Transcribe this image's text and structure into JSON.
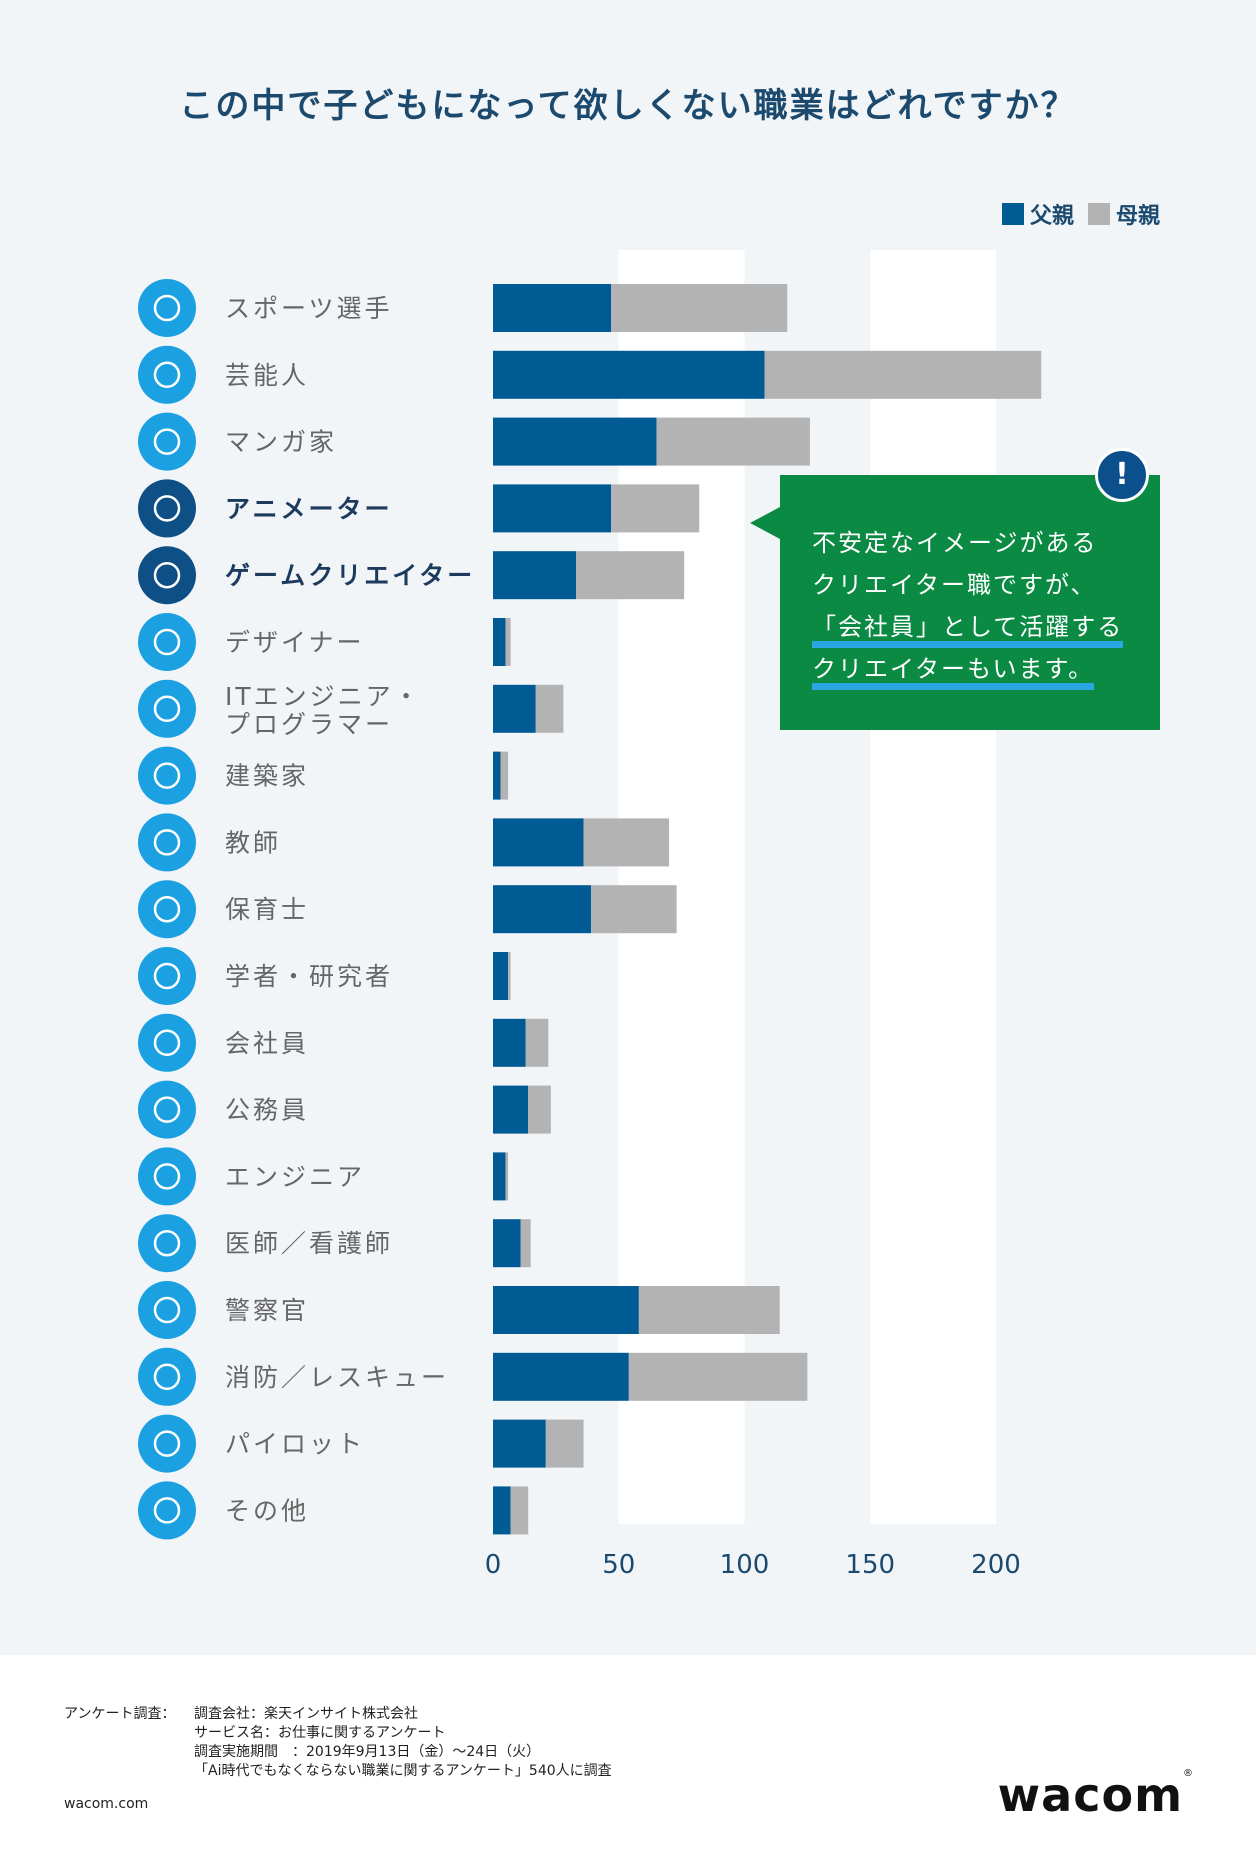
{
  "title": "この中で子どもになって欲しくない職業はどれですか？",
  "legend": {
    "father": "父親",
    "mother": "母親"
  },
  "colors": {
    "father": "#005a94",
    "mother": "#b3b3b3",
    "icon": "#1ba1e2",
    "icon_dark": "#0e4f86",
    "callout": "#0a8a43",
    "panel": "#f2f5f8",
    "title": "#1c4a6e"
  },
  "callout": {
    "badge": "!",
    "line1": "不安定なイメージがある",
    "line2": "クリエイター職ですが、",
    "line3": "「会社員」として活躍する",
    "line4": "クリエイターもいます。"
  },
  "chart_data": {
    "type": "bar",
    "orientation": "horizontal",
    "stacked": true,
    "categories": [
      "スポーツ選手",
      "芸能人",
      "マンガ家",
      "アニメーター",
      "ゲームクリエイター",
      "デザイナー",
      "ITエンジニア・プログラマー",
      "建築家",
      "教師",
      "保育士",
      "学者・研究者",
      "会社員",
      "公務員",
      "エンジニア",
      "医師／看護師",
      "警察官",
      "消防／レスキュー",
      "パイロット",
      "その他"
    ],
    "category_lines": [
      [
        "スポーツ選手"
      ],
      [
        "芸能人"
      ],
      [
        "マンガ家"
      ],
      [
        "アニメーター"
      ],
      [
        "ゲームクリエイター"
      ],
      [
        "デザイナー"
      ],
      [
        "ITエンジニア・",
        "プログラマー"
      ],
      [
        "建築家"
      ],
      [
        "教師"
      ],
      [
        "保育士"
      ],
      [
        "学者・研究者"
      ],
      [
        "会社員"
      ],
      [
        "公務員"
      ],
      [
        "エンジニア"
      ],
      [
        "医師／看護師"
      ],
      [
        "警察官"
      ],
      [
        "消防／レスキュー"
      ],
      [
        "パイロット"
      ],
      [
        "その他"
      ]
    ],
    "highlighted": [
      3,
      4
    ],
    "icons": [
      "sports-icon",
      "microphone-icon",
      "manga-icon",
      "animation-tablet-icon",
      "gamepad-icon",
      "design-tools-icon",
      "computer-monitor-icon",
      "blueprint-icon",
      "notebook-icon",
      "apron-icon",
      "books-flask-icon",
      "briefcase-icon",
      "building-id-icon",
      "gear-icon",
      "stethoscope-icon",
      "police-cap-icon",
      "firefighter-helmet-icon",
      "airplane-icon",
      "more-icon"
    ],
    "series": [
      {
        "name": "父親",
        "values": [
          47,
          108,
          65,
          47,
          33,
          5,
          17,
          3,
          36,
          39,
          6,
          13,
          14,
          5,
          11,
          58,
          54,
          21,
          7
        ]
      },
      {
        "name": "母親",
        "values": [
          70,
          110,
          61,
          35,
          43,
          2,
          11,
          3,
          34,
          34,
          1,
          9,
          9,
          1,
          4,
          56,
          71,
          15,
          7
        ]
      }
    ],
    "xticks": [
      0,
      50,
      100,
      150,
      200
    ],
    "xlim": [
      0,
      200
    ],
    "grid": "alternating-bands",
    "legend_position": "top-right"
  },
  "footer": {
    "label": "アンケート調査：",
    "line1": "調査会社：楽天インサイト株式会社",
    "line2": "サービス名：お仕事に関するアンケート",
    "line3": "調査実施期間　：2019年9月13日（金）～24日（火）",
    "line4": "「Ai時代でもなくならない職業に関するアンケート」540人に調査",
    "site": "wacom.com",
    "logo": "wacom"
  }
}
